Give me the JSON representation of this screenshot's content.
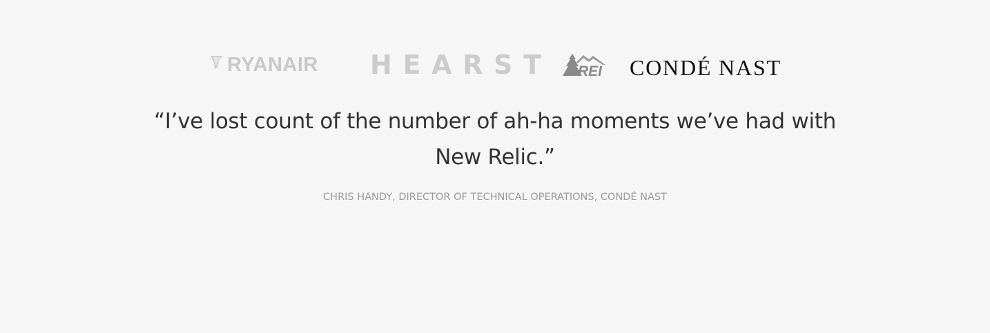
{
  "logos": [
    {
      "name": "RYANAIR",
      "color": "#c8c8c8"
    },
    {
      "name": "HEARST",
      "color": "#cccccc"
    },
    {
      "name": "REI",
      "color": "#8a8a8a"
    },
    {
      "name": "CONDÉ NAST",
      "color": "#111111"
    }
  ],
  "testimonial": {
    "quote": "“I’ve lost count of the number of ah-ha moments we’ve had with New Relic.”",
    "attribution": "CHRIS HANDY, DIRECTOR OF TECHNICAL OPERATIONS, CONDÉ NAST"
  },
  "colors": {
    "background": "#f6f6f6",
    "quote_text": "#333333",
    "attribution_text": "#9a9a9a"
  }
}
